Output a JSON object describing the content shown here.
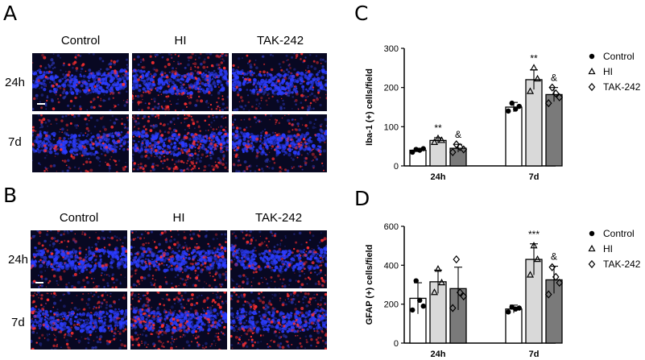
{
  "panels": {
    "a": {
      "letter": "A",
      "columns": [
        "Control",
        "HI",
        "TAK-242"
      ],
      "rows": [
        "24h",
        "7d"
      ]
    },
    "b": {
      "letter": "B",
      "columns": [
        "Control",
        "HI",
        "TAK-242"
      ],
      "rows": [
        "24h",
        "7d"
      ]
    },
    "c": {
      "letter": "C"
    },
    "d": {
      "letter": "D"
    }
  },
  "colors": {
    "control_fill": "#ffffff",
    "hi_fill": "#d9d9d9",
    "tak_fill": "#7a7a7a",
    "nuclei": "#2b3cff",
    "stain": "#ff3030"
  },
  "chart_data": [
    {
      "type": "bar",
      "ylabel": "Iba-1 (+) cells/field",
      "ylim": [
        0,
        300
      ],
      "yticks": [
        0,
        100,
        200,
        300
      ],
      "categories": [
        "24h",
        "7d"
      ],
      "legend_placement": "right",
      "series": [
        {
          "name": "Control",
          "marker": "circle",
          "values": [
            40,
            150
          ],
          "errors": [
            5,
            12
          ],
          "points": [
            [
              35,
              42,
              40,
              44
            ],
            [
              140,
              160,
              145,
              152
            ]
          ]
        },
        {
          "name": "HI",
          "marker": "triangle",
          "values": [
            65,
            220
          ],
          "errors": [
            7,
            25
          ],
          "points": [
            [
              60,
              70,
              65
            ],
            [
              190,
              250,
              222
            ]
          ]
        },
        {
          "name": "TAK-242",
          "marker": "diamond",
          "values": [
            45,
            182
          ],
          "errors": [
            10,
            18
          ],
          "points": [
            [
              35,
              55,
              48,
              42
            ],
            [
              160,
              200,
              185,
              175
            ]
          ]
        }
      ],
      "annotations": [
        {
          "category": "24h",
          "series": "HI",
          "text": "**"
        },
        {
          "category": "24h",
          "series": "TAK-242",
          "text": "&"
        },
        {
          "category": "7d",
          "series": "HI",
          "text": "**"
        },
        {
          "category": "7d",
          "series": "TAK-242",
          "text": "&"
        }
      ]
    },
    {
      "type": "bar",
      "ylabel": "GFAP (+) cells/field",
      "ylim": [
        0,
        600
      ],
      "yticks": [
        0,
        200,
        400,
        600
      ],
      "categories": [
        "24h",
        "7d"
      ],
      "legend_placement": "right",
      "series": [
        {
          "name": "Control",
          "marker": "circle",
          "values": [
            230,
            175
          ],
          "errors": [
            80,
            20
          ],
          "points": [
            [
              170,
              320,
              220,
              190
            ],
            [
              160,
              185,
              175,
              180
            ]
          ]
        },
        {
          "name": "HI",
          "marker": "triangle",
          "values": [
            315,
            430
          ],
          "errors": [
            60,
            80
          ],
          "points": [
            [
              260,
              380,
              310
            ],
            [
              350,
              500,
              430
            ]
          ]
        },
        {
          "name": "TAK-242",
          "marker": "diamond",
          "values": [
            280,
            325
          ],
          "errors": [
            110,
            70
          ],
          "points": [
            [
              180,
              430,
              260,
              240
            ],
            [
              250,
              390,
              340,
              310
            ]
          ]
        }
      ],
      "annotations": [
        {
          "category": "7d",
          "series": "HI",
          "text": "***"
        },
        {
          "category": "7d",
          "series": "TAK-242",
          "text": "&"
        }
      ]
    }
  ]
}
